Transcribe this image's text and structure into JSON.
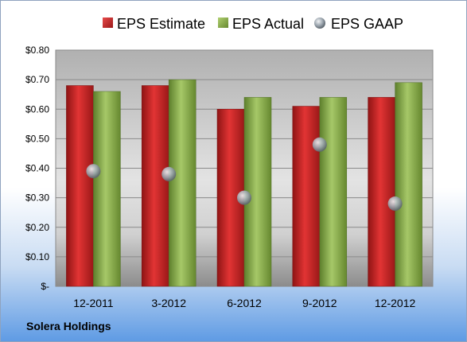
{
  "company": "Solera Holdings",
  "colors": {
    "estimate": "#d42a2a",
    "actual": "#8db34c",
    "gaap": "#aab4bd"
  },
  "chart_data": {
    "type": "bar",
    "categories": [
      "12-2011",
      "3-2012",
      "6-2012",
      "9-2012",
      "12-2012"
    ],
    "series": [
      {
        "name": "EPS Estimate",
        "type": "bar",
        "values": [
          0.68,
          0.68,
          0.6,
          0.61,
          0.64
        ]
      },
      {
        "name": "EPS Actual",
        "type": "bar",
        "values": [
          0.66,
          0.7,
          0.64,
          0.64,
          0.69
        ]
      },
      {
        "name": "EPS GAAP",
        "type": "scatter",
        "values": [
          0.39,
          0.38,
          0.3,
          0.48,
          0.28
        ]
      }
    ],
    "y_ticks": [
      "$-",
      "$0.10",
      "$0.20",
      "$0.30",
      "$0.40",
      "$0.50",
      "$0.60",
      "$0.70",
      "$0.80"
    ],
    "ylim": [
      0,
      0.8
    ],
    "grid": true,
    "legend": "top"
  }
}
